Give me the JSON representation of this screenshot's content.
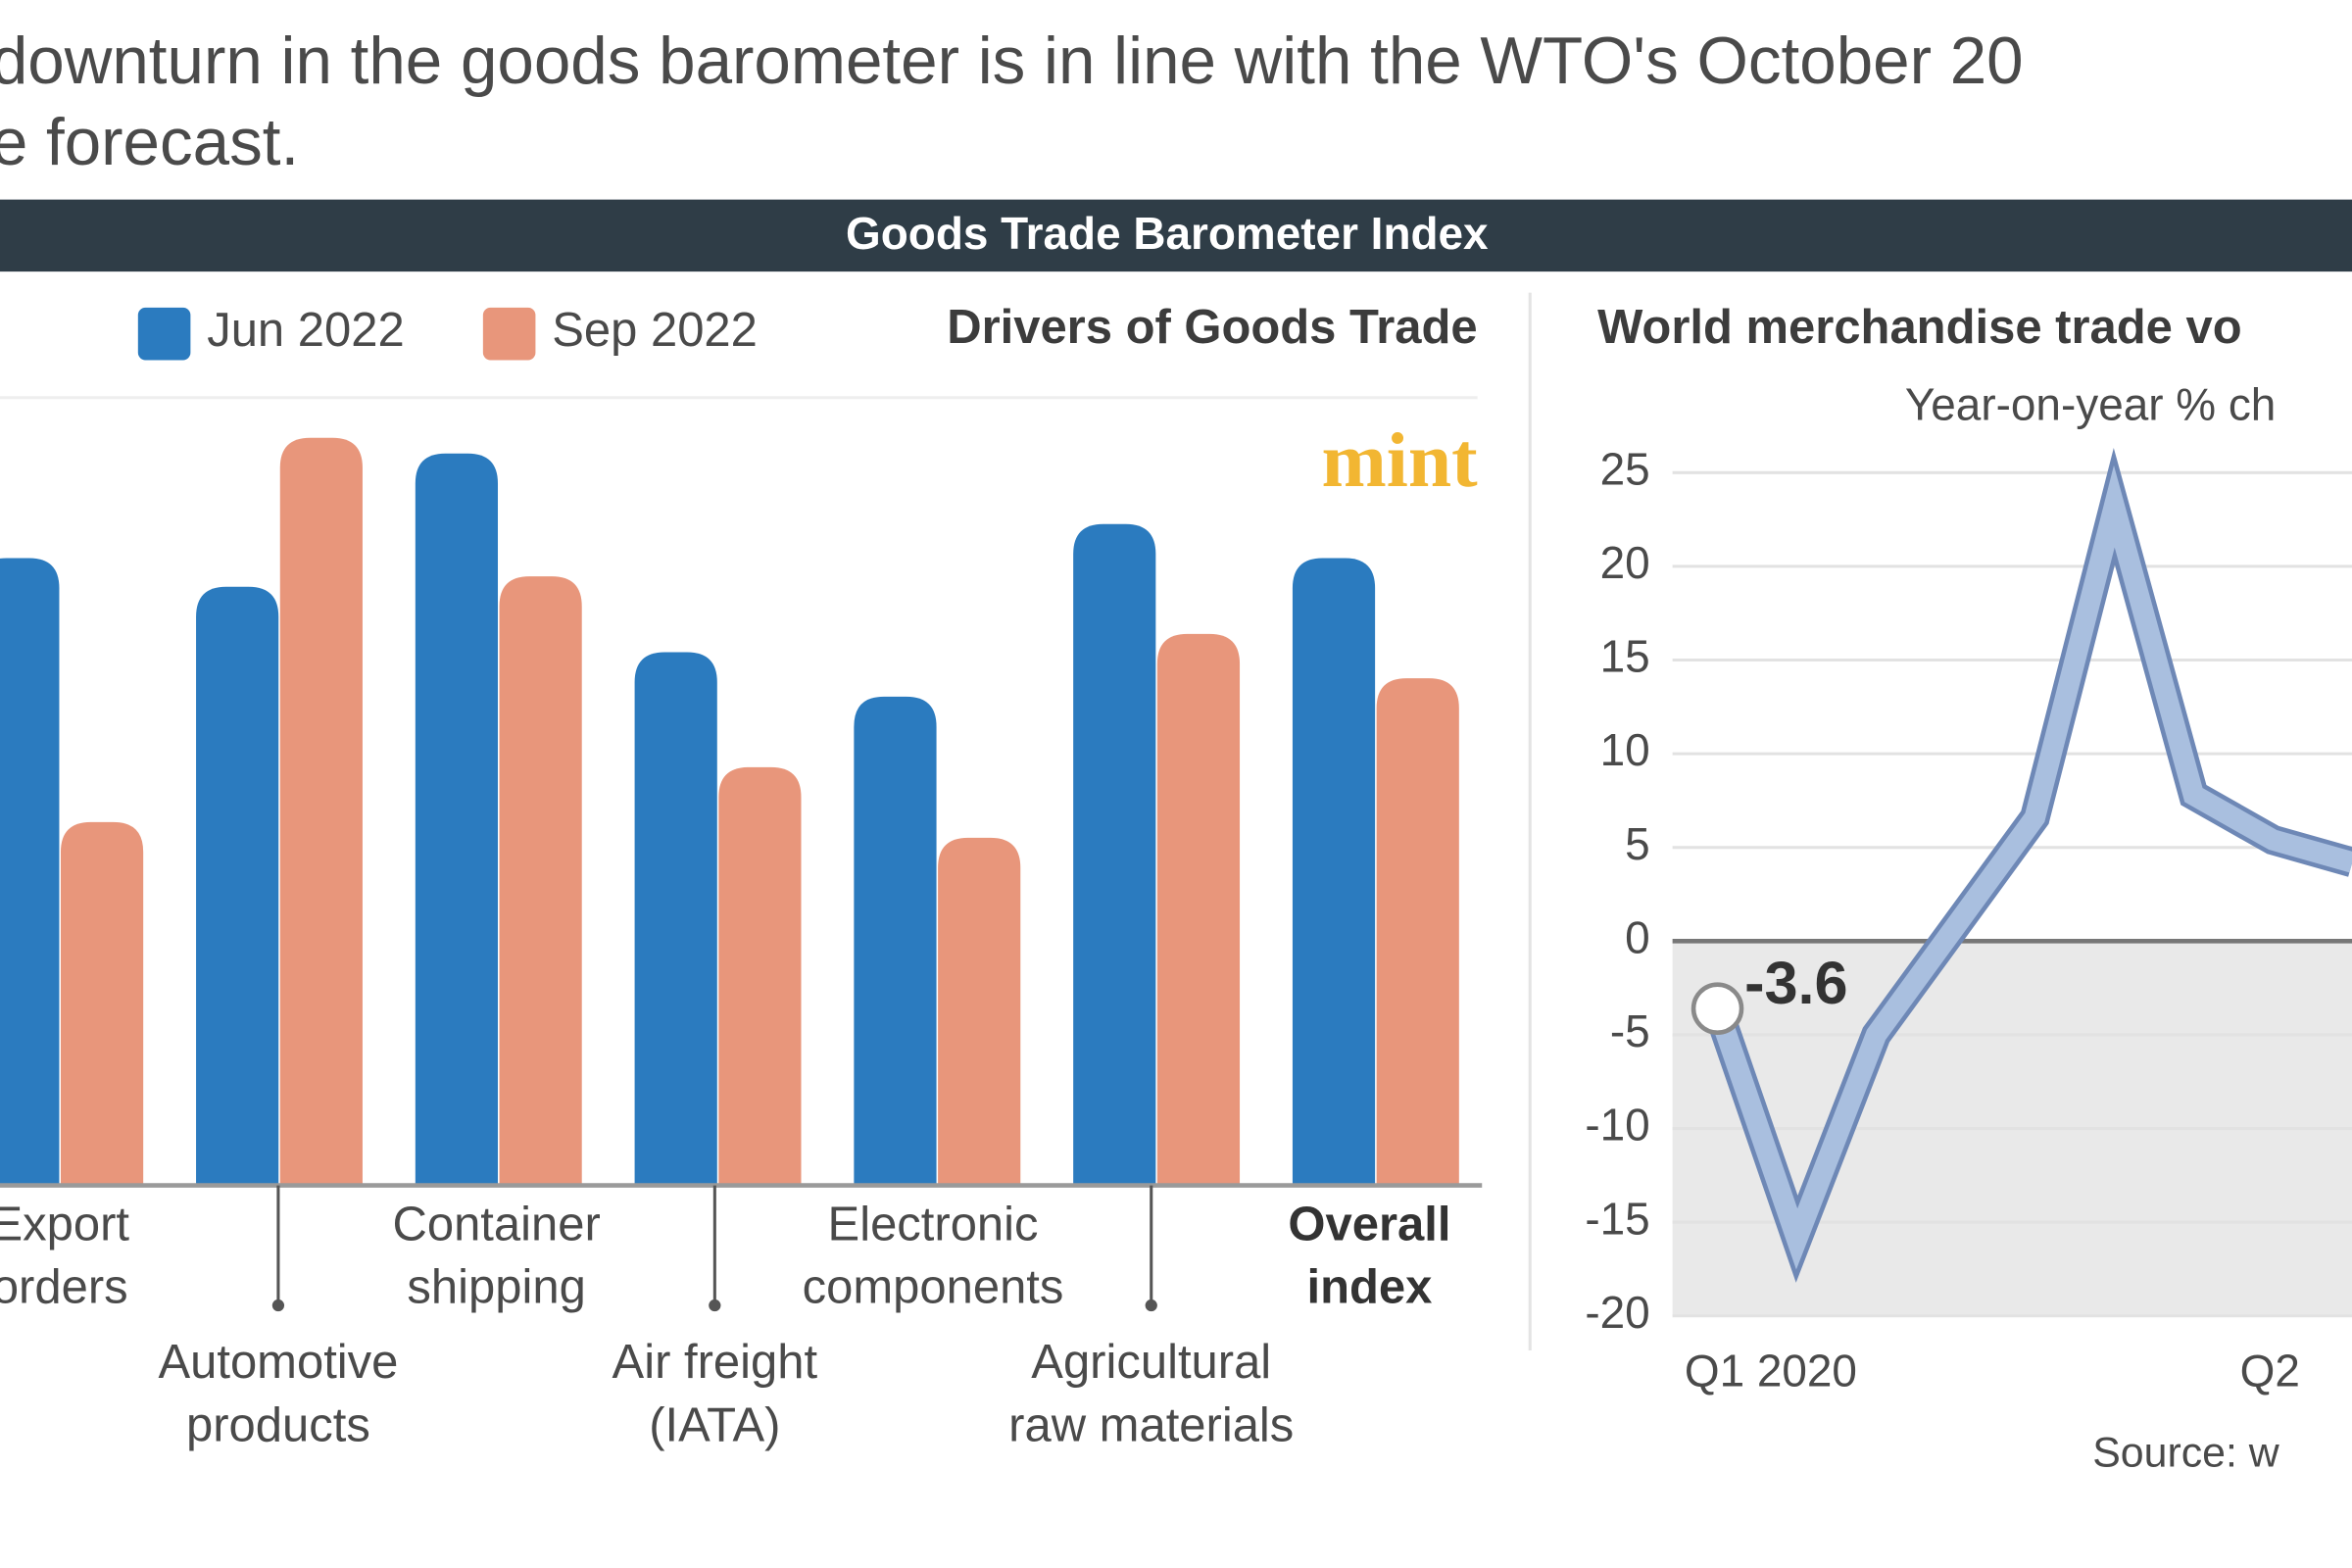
{
  "intro": [
    "downturn in the goods barometer is in line with the WTO's October 20",
    "e forecast."
  ],
  "banner": "Goods Trade Barometer Index",
  "logo": "mint",
  "chart_data": [
    {
      "type": "bar",
      "title": "Drivers of Goods Trade",
      "categories": [
        [
          "Export",
          "orders"
        ],
        [
          "Automotive",
          "products"
        ],
        [
          "Container",
          "shipping"
        ],
        [
          "Air freight",
          "(IATA)"
        ],
        [
          "Electronic",
          "components"
        ],
        [
          "Agricultural",
          "raw materials"
        ],
        [
          "Overall",
          "index"
        ]
      ],
      "series": [
        {
          "name": "Jun 2022",
          "color": "#2b7bbf",
          "values": [
            100,
            98.9,
            104,
            96.4,
            94.7,
            101.3,
            100
          ]
        },
        {
          "name": "Sep 2022",
          "color": "#e8967b",
          "values": [
            89.9,
            104.6,
            99.3,
            92,
            89.3,
            97.1,
            95.4
          ]
        }
      ],
      "ylim": [
        76,
        107
      ]
    },
    {
      "type": "line",
      "title": "World merchandise trade vo",
      "subtitle": "Year-on-year % ch",
      "source": "Source: w",
      "categories": [
        "Q1 2020",
        null,
        null,
        null,
        null,
        null,
        null,
        "Q2",
        null
      ],
      "series": [
        {
          "color": "#a9bfdf",
          "values": [
            -3.6,
            -15.9,
            -5,
            0.8,
            6.6,
            23.2,
            7.8,
            5.4,
            4.2
          ]
        }
      ],
      "ylim": [
        -20,
        25
      ],
      "yticks": [
        25,
        20,
        15,
        10,
        5,
        0,
        -5,
        -10,
        -15,
        -20
      ],
      "grid": true
    }
  ]
}
